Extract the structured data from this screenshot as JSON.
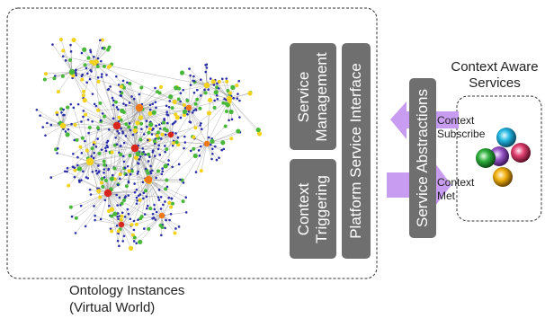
{
  "left_panel": {
    "caption_line1": "Ontology Instances",
    "caption_line2": "(Virtual World)"
  },
  "blocks": {
    "service_management_line1": "Service",
    "service_management_line2": "Management",
    "context_triggering_line1": "Context",
    "context_triggering_line2": "Triggering",
    "platform_service_interface": "Platform Service Interface",
    "service_abstractions": "Service Abstractions"
  },
  "arrows": {
    "upper_line1": "Context",
    "upper_line2": "Subscribe",
    "lower_line1": "Context",
    "lower_line2": "Met"
  },
  "right_panel": {
    "title_line1": "Context Aware",
    "title_line2": "Services"
  },
  "colors": {
    "block_fill": "#6f6f6f",
    "arrow_fill": "#c89cf0",
    "node_blue": "#2b2fa8",
    "node_green": "#48b83a",
    "node_yellow": "#f2d21c",
    "node_red": "#d8261c",
    "node_orange": "#f07818",
    "service_ball_colors": [
      "#22b6e0",
      "#e04070",
      "#9a58c8",
      "#30b040",
      "#f0b010"
    ]
  }
}
